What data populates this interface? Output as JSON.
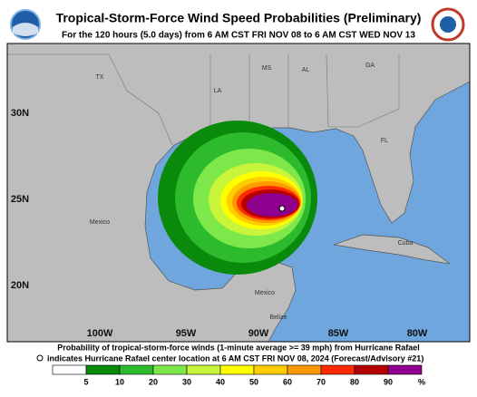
{
  "header": {
    "title": "Tropical-Storm-Force Wind Speed Probabilities (Preliminary)",
    "subtitle": "For the 120 hours (5.0 days) from 6 AM CST FRI NOV 08 to 6 AM CST WED NOV 13"
  },
  "map": {
    "regions": [
      "TX",
      "LA",
      "MS",
      "AL",
      "GA",
      "FL",
      "Mexico",
      "Cuba",
      "Mexico",
      "Belize"
    ],
    "latitudes": [
      "30N",
      "25N",
      "20N"
    ],
    "longitudes": [
      "100W",
      "95W",
      "90W",
      "85W",
      "80W"
    ]
  },
  "footer": {
    "caption": "Probability of tropical-storm-force winds (1-minute average >= 39 mph) from Hurricane Rafael",
    "center_note": "indicates Hurricane Rafael center location at 6 AM CST FRI NOV 08, 2024 (Forecast/Advisory #21)"
  },
  "legend": {
    "colors": [
      "#ffffff",
      "#0a8a0a",
      "#2dbb2d",
      "#7ee84a",
      "#c8f53a",
      "#ffff00",
      "#ffcc00",
      "#ff9900",
      "#ff2a00",
      "#b40000",
      "#8e008e"
    ],
    "labels": [
      "5",
      "10",
      "20",
      "30",
      "40",
      "50",
      "60",
      "70",
      "80",
      "90",
      "%"
    ]
  }
}
